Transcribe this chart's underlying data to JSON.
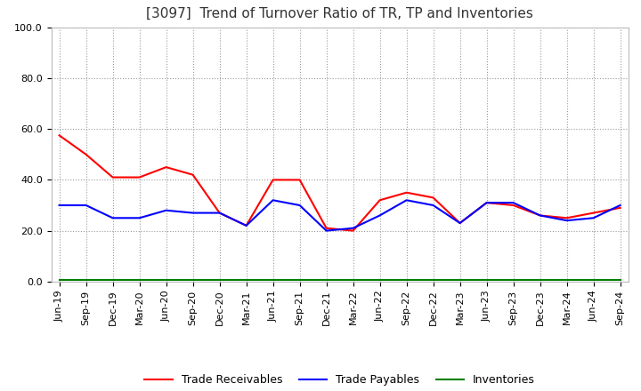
{
  "title": "[3097]  Trend of Turnover Ratio of TR, TP and Inventories",
  "x_labels": [
    "Jun-19",
    "Sep-19",
    "Dec-19",
    "Mar-20",
    "Jun-20",
    "Sep-20",
    "Dec-20",
    "Mar-21",
    "Jun-21",
    "Sep-21",
    "Dec-21",
    "Mar-22",
    "Jun-22",
    "Sep-22",
    "Dec-22",
    "Mar-23",
    "Jun-23",
    "Sep-23",
    "Dec-23",
    "Mar-24",
    "Jun-24",
    "Sep-24"
  ],
  "trade_receivables": [
    57.5,
    50.0,
    41.0,
    41.0,
    45.0,
    42.0,
    27.0,
    22.0,
    40.0,
    40.0,
    21.0,
    20.0,
    32.0,
    35.0,
    33.0,
    23.0,
    31.0,
    30.0,
    26.0,
    25.0,
    27.0,
    29.0
  ],
  "trade_payables": [
    30.0,
    30.0,
    25.0,
    25.0,
    28.0,
    27.0,
    27.0,
    22.0,
    32.0,
    30.0,
    20.0,
    21.0,
    26.0,
    32.0,
    30.0,
    23.0,
    31.0,
    31.0,
    26.0,
    24.0,
    25.0,
    30.0
  ],
  "inventories": [
    0.5,
    0.5,
    0.5,
    0.5,
    0.5,
    0.5,
    0.5,
    0.5,
    0.5,
    0.5,
    0.5,
    0.5,
    0.5,
    0.5,
    0.5,
    0.5,
    0.5,
    0.5,
    0.5,
    0.5,
    0.5,
    0.5
  ],
  "ylim": [
    0.0,
    100.0
  ],
  "yticks": [
    0.0,
    20.0,
    40.0,
    60.0,
    80.0,
    100.0
  ],
  "line_color_tr": "#ff0000",
  "line_color_tp": "#0000ff",
  "line_color_inv": "#008000",
  "legend_labels": [
    "Trade Receivables",
    "Trade Payables",
    "Inventories"
  ],
  "background_color": "#ffffff",
  "grid_color": "#999999",
  "title_fontsize": 11,
  "tick_fontsize": 8,
  "legend_fontsize": 9
}
